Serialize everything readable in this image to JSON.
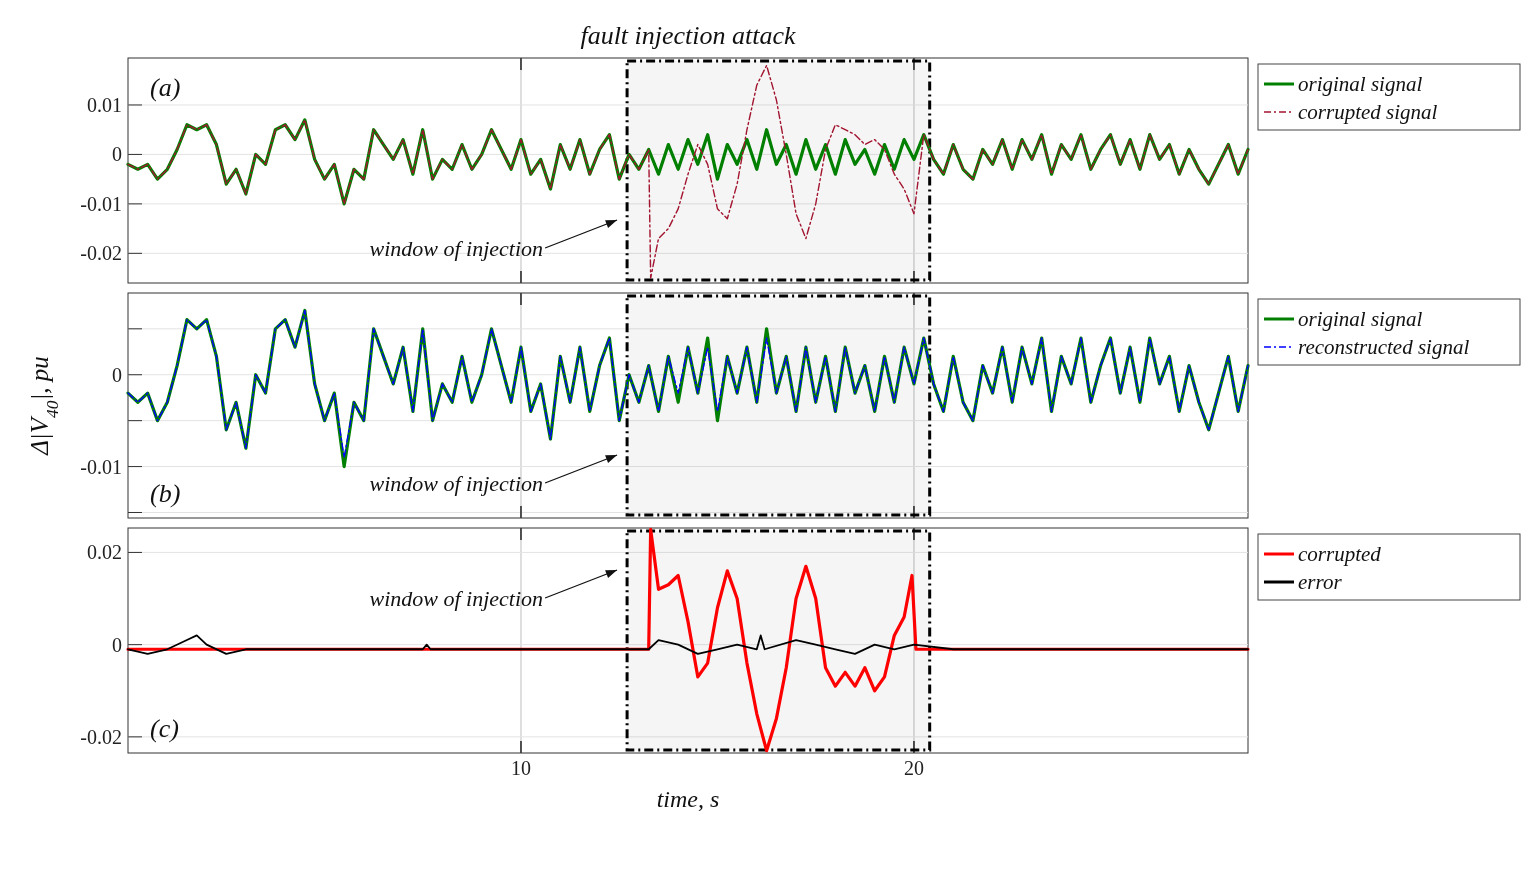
{
  "chart_data": [
    {
      "type": "line",
      "title": "fault injection attack",
      "xlim": [
        0,
        28.5
      ],
      "ylim": [
        -0.026,
        0.0195
      ],
      "yticks": [
        -0.02,
        -0.01,
        0,
        0.01
      ],
      "grid": true,
      "legend": "right",
      "tick_labels": "y",
      "x": [
        0,
        0.25,
        0.5,
        0.75,
        1,
        1.25,
        1.5,
        1.75,
        2,
        2.25,
        2.5,
        2.75,
        3,
        3.25,
        3.5,
        3.75,
        4,
        4.25,
        4.5,
        4.75,
        5,
        5.25,
        5.5,
        5.75,
        6,
        6.25,
        6.5,
        6.75,
        7,
        7.25,
        7.5,
        7.75,
        8,
        8.25,
        8.5,
        8.75,
        9,
        9.25,
        9.5,
        9.75,
        10,
        10.25,
        10.5,
        10.75,
        11,
        11.25,
        11.5,
        11.75,
        12,
        12.25,
        12.5,
        12.75,
        13,
        13.25,
        13.5,
        13.75,
        14,
        14.25,
        14.5,
        14.75,
        15,
        15.25,
        15.5,
        15.75,
        16,
        16.25,
        16.5,
        16.75,
        17,
        17.25,
        17.5,
        17.75,
        18,
        18.25,
        18.5,
        18.75,
        19,
        19.25,
        19.5,
        19.75,
        20,
        20.25,
        20.5,
        20.75,
        21,
        21.25,
        21.5,
        21.75,
        22,
        22.25,
        22.5,
        22.75,
        23,
        23.25,
        23.5,
        23.75,
        24,
        24.25,
        24.5,
        24.75,
        25,
        25.25,
        25.5,
        25.75,
        26,
        26.25,
        26.5,
        26.75,
        27,
        27.25,
        27.5,
        27.75,
        28,
        28.25,
        28.5
      ],
      "series": [
        {
          "name": "original signal",
          "color": "#007f00",
          "line_style": "solid",
          "values": [
            -0.002,
            -0.003,
            -0.002,
            -0.005,
            -0.003,
            0.001,
            0.006,
            0.005,
            0.006,
            0.002,
            -0.006,
            -0.003,
            -0.008,
            0,
            -0.002,
            0.005,
            0.006,
            0.003,
            0.007,
            -0.001,
            -0.005,
            -0.002,
            -0.01,
            -0.003,
            -0.005,
            0.005,
            0.002,
            -0.001,
            0.003,
            -0.004,
            0.005,
            -0.005,
            -0.001,
            -0.003,
            0.002,
            -0.003,
            0,
            0.005,
            0.001,
            -0.003,
            0.003,
            -0.004,
            -0.001,
            -0.007,
            0.002,
            -0.003,
            0.003,
            -0.004,
            0.001,
            0.004,
            -0.005,
            0,
            -0.003,
            0.001,
            -0.004,
            0.002,
            -0.003,
            0.003,
            -0.002,
            0.004,
            -0.005,
            0.002,
            -0.002,
            0.003,
            -0.003,
            0.005,
            -0.002,
            0.002,
            -0.004,
            0.003,
            -0.003,
            0.002,
            -0.004,
            0.003,
            -0.002,
            0.001,
            -0.004,
            0.002,
            -0.003,
            0.003,
            -0.001,
            0.004,
            -0.001,
            -0.004,
            0.002,
            -0.003,
            -0.005,
            0.001,
            -0.002,
            0.003,
            -0.003,
            0.003,
            -0.001,
            0.004,
            -0.004,
            0.002,
            -0.001,
            0.004,
            -0.003,
            0.001,
            0.004,
            -0.002,
            0.003,
            -0.003,
            0.004,
            -0.001,
            0.002,
            -0.004,
            0.001,
            -0.003,
            -0.006,
            -0.002,
            0.002,
            -0.004,
            0.001
          ]
        },
        {
          "name": "corrupted signal",
          "color": "#a2142f",
          "line_style": "dashed",
          "x": [
            0,
            0.25,
            0.5,
            0.75,
            1,
            1.25,
            1.5,
            1.75,
            2,
            2.25,
            2.5,
            2.75,
            3,
            3.25,
            3.5,
            3.75,
            4,
            4.25,
            4.5,
            4.75,
            5,
            5.25,
            5.5,
            5.75,
            6,
            6.25,
            6.5,
            6.75,
            7,
            7.25,
            7.5,
            7.75,
            8,
            8.25,
            8.5,
            8.75,
            9,
            9.25,
            9.5,
            9.75,
            10,
            10.25,
            10.5,
            10.75,
            11,
            11.25,
            11.5,
            11.75,
            12,
            12.25,
            12.5,
            12.75,
            13,
            13.25,
            13.3,
            13.5,
            13.75,
            14,
            14.25,
            14.5,
            14.75,
            15,
            15.25,
            15.5,
            15.75,
            16,
            16.25,
            16.5,
            16.75,
            17,
            17.25,
            17.5,
            17.75,
            18,
            18.25,
            18.5,
            18.75,
            19,
            19.25,
            19.5,
            19.75,
            20,
            20.25,
            20.5,
            20.75,
            21,
            21.25,
            21.5,
            21.75,
            22,
            22.25,
            22.5,
            22.75,
            23,
            23.25,
            23.5,
            23.75,
            24,
            24.25,
            24.5,
            24.75,
            25,
            25.25,
            25.5,
            25.75,
            26,
            26.25,
            26.5,
            26.75,
            27,
            27.25,
            27.5,
            27.75,
            28,
            28.25,
            28.5
          ],
          "values": [
            -0.002,
            -0.003,
            -0.002,
            -0.005,
            -0.003,
            0.001,
            0.006,
            0.005,
            0.006,
            0.002,
            -0.006,
            -0.003,
            -0.008,
            0,
            -0.002,
            0.005,
            0.006,
            0.003,
            0.007,
            -0.001,
            -0.005,
            -0.002,
            -0.01,
            -0.003,
            -0.005,
            0.005,
            0.002,
            -0.001,
            0.003,
            -0.004,
            0.005,
            -0.005,
            -0.001,
            -0.003,
            0.002,
            -0.003,
            0,
            0.005,
            0.001,
            -0.003,
            0.003,
            -0.004,
            -0.001,
            -0.007,
            0.002,
            -0.003,
            0.003,
            -0.004,
            0.001,
            0.004,
            -0.005,
            0,
            -0.003,
            0.001,
            -0.025,
            -0.017,
            -0.015,
            -0.011,
            -0.004,
            0.002,
            -0.002,
            -0.011,
            -0.013,
            -0.006,
            0.005,
            0.014,
            0.018,
            0.011,
            0,
            -0.012,
            -0.017,
            -0.01,
            0.001,
            0.006,
            0.005,
            0.004,
            0.002,
            0.003,
            0.001,
            -0.004,
            -0.007,
            -0.012,
            0.004,
            -0.001,
            -0.004,
            0.002,
            -0.003,
            -0.005,
            0.001,
            -0.002,
            0.003,
            -0.003,
            0.003,
            -0.001,
            0.004,
            -0.004,
            0.002,
            -0.001,
            0.004,
            -0.003,
            0.001,
            0.004,
            -0.002,
            0.003,
            -0.003,
            0.004,
            -0.001,
            0.002,
            -0.004,
            0.001,
            -0.003,
            -0.006,
            -0.002,
            0.002,
            -0.004,
            0.001
          ]
        }
      ],
      "bands": [
        {
          "axis": "x",
          "from": 12.7,
          "to": 20.4,
          "color": "#000000"
        }
      ],
      "annotations": [
        "(a)",
        "window of injection"
      ]
    },
    {
      "type": "line",
      "ylabel": "Δ|V$_{40}$|, pu",
      "xlim": [
        0,
        28.5
      ],
      "ylim": [
        -0.0156,
        0.0089
      ],
      "yticks": [
        {
          "value": -0.015,
          "label": null
        },
        -0.01,
        {
          "value": -0.005,
          "label": null
        },
        0,
        {
          "value": 0.005,
          "label": null
        }
      ],
      "grid": true,
      "legend": "right",
      "tick_labels": "y",
      "x": [
        0,
        0.25,
        0.5,
        0.75,
        1,
        1.25,
        1.5,
        1.75,
        2,
        2.25,
        2.5,
        2.75,
        3,
        3.25,
        3.5,
        3.75,
        4,
        4.25,
        4.5,
        4.75,
        5,
        5.25,
        5.5,
        5.75,
        6,
        6.25,
        6.5,
        6.75,
        7,
        7.25,
        7.5,
        7.75,
        8,
        8.25,
        8.5,
        8.75,
        9,
        9.25,
        9.5,
        9.75,
        10,
        10.25,
        10.5,
        10.75,
        11,
        11.25,
        11.5,
        11.75,
        12,
        12.25,
        12.5,
        12.75,
        13,
        13.25,
        13.5,
        13.75,
        14,
        14.25,
        14.5,
        14.75,
        15,
        15.25,
        15.5,
        15.75,
        16,
        16.25,
        16.5,
        16.75,
        17,
        17.25,
        17.5,
        17.75,
        18,
        18.25,
        18.5,
        18.75,
        19,
        19.25,
        19.5,
        19.75,
        20,
        20.25,
        20.5,
        20.75,
        21,
        21.25,
        21.5,
        21.75,
        22,
        22.25,
        22.5,
        22.75,
        23,
        23.25,
        23.5,
        23.75,
        24,
        24.25,
        24.5,
        24.75,
        25,
        25.25,
        25.5,
        25.75,
        26,
        26.25,
        26.5,
        26.75,
        27,
        27.25,
        27.5,
        27.75,
        28,
        28.25,
        28.5
      ],
      "series": [
        {
          "name": "original signal",
          "color": "#007f00",
          "line_style": "solid",
          "values": [
            -0.002,
            -0.003,
            -0.002,
            -0.005,
            -0.003,
            0.001,
            0.006,
            0.005,
            0.006,
            0.002,
            -0.006,
            -0.003,
            -0.008,
            0,
            -0.002,
            0.005,
            0.006,
            0.003,
            0.007,
            -0.001,
            -0.005,
            -0.002,
            -0.01,
            -0.003,
            -0.005,
            0.005,
            0.002,
            -0.001,
            0.003,
            -0.004,
            0.005,
            -0.005,
            -0.001,
            -0.003,
            0.002,
            -0.003,
            0,
            0.005,
            0.001,
            -0.003,
            0.003,
            -0.004,
            -0.001,
            -0.007,
            0.002,
            -0.003,
            0.003,
            -0.004,
            0.001,
            0.004,
            -0.005,
            0,
            -0.003,
            0.001,
            -0.004,
            0.002,
            -0.003,
            0.003,
            -0.002,
            0.004,
            -0.005,
            0.002,
            -0.002,
            0.003,
            -0.003,
            0.005,
            -0.002,
            0.002,
            -0.004,
            0.003,
            -0.003,
            0.002,
            -0.004,
            0.003,
            -0.002,
            0.001,
            -0.004,
            0.002,
            -0.003,
            0.003,
            -0.001,
            0.004,
            -0.001,
            -0.004,
            0.002,
            -0.003,
            -0.005,
            0.001,
            -0.002,
            0.003,
            -0.003,
            0.003,
            -0.001,
            0.004,
            -0.004,
            0.002,
            -0.001,
            0.004,
            -0.003,
            0.001,
            0.004,
            -0.002,
            0.003,
            -0.003,
            0.004,
            -0.001,
            0.002,
            -0.004,
            0.001,
            -0.003,
            -0.006,
            -0.002,
            0.002,
            -0.004,
            0.001
          ]
        },
        {
          "name": "reconstructed signal",
          "color": "#0000ff",
          "line_style": "dashed",
          "values": [
            -0.002,
            -0.003,
            -0.002,
            -0.005,
            -0.003,
            0.001,
            0.006,
            0.005,
            0.006,
            0.002,
            -0.006,
            -0.003,
            -0.008,
            0,
            -0.002,
            0.005,
            0.006,
            0.003,
            0.007,
            -0.001,
            -0.005,
            -0.002,
            -0.009,
            -0.003,
            -0.005,
            0.005,
            0.002,
            -0.001,
            0.003,
            -0.004,
            0.005,
            -0.005,
            -0.001,
            -0.003,
            0.002,
            -0.003,
            0,
            0.005,
            0.001,
            -0.003,
            0.003,
            -0.004,
            -0.001,
            -0.007,
            0.002,
            -0.003,
            0.003,
            -0.004,
            0.001,
            0.004,
            -0.005,
            0,
            -0.003,
            0.001,
            -0.004,
            0.002,
            -0.002,
            0.003,
            -0.002,
            0.003,
            -0.004,
            0.002,
            -0.002,
            0.003,
            -0.003,
            0.004,
            -0.002,
            0.002,
            -0.004,
            0.003,
            -0.003,
            0.002,
            -0.004,
            0.003,
            -0.002,
            0.001,
            -0.004,
            0.002,
            -0.003,
            0.003,
            -0.001,
            0.004,
            -0.001,
            -0.004,
            0.002,
            -0.003,
            -0.005,
            0.001,
            -0.002,
            0.003,
            -0.003,
            0.003,
            -0.001,
            0.004,
            -0.004,
            0.002,
            -0.001,
            0.004,
            -0.003,
            0.001,
            0.004,
            -0.002,
            0.003,
            -0.003,
            0.004,
            -0.001,
            0.002,
            -0.004,
            0.001,
            -0.003,
            -0.006,
            -0.002,
            0.002,
            -0.004,
            0.001
          ]
        }
      ],
      "bands": [
        {
          "axis": "x",
          "from": 12.7,
          "to": 20.4,
          "color": "#000000"
        }
      ],
      "annotations": [
        "(b)",
        "window of injection"
      ]
    },
    {
      "type": "line",
      "xlabel": "time, s",
      "xlim": [
        0,
        28.5
      ],
      "xticks": [
        10,
        20
      ],
      "ylim": [
        -0.0235,
        0.0253
      ],
      "yticks": [
        -0.02,
        0,
        0.02
      ],
      "grid": true,
      "legend": "right",
      "series": [
        {
          "name": "corrupted",
          "color": "#ff0000",
          "line_style": "solid",
          "x": [
            0,
            13.25,
            13.3,
            13.5,
            13.75,
            14,
            14.25,
            14.5,
            14.75,
            15,
            15.25,
            15.5,
            15.75,
            16,
            16.25,
            16.5,
            16.75,
            17,
            17.25,
            17.5,
            17.75,
            18,
            18.25,
            18.5,
            18.75,
            19,
            19.25,
            19.5,
            19.75,
            19.95,
            20.05,
            28.5
          ],
          "values": [
            -0.001,
            -0.001,
            0.025,
            0.012,
            0.013,
            0.015,
            0.005,
            -0.007,
            -0.004,
            0.008,
            0.016,
            0.01,
            -0.004,
            -0.015,
            -0.023,
            -0.016,
            -0.005,
            0.01,
            0.017,
            0.01,
            -0.005,
            -0.009,
            -0.006,
            -0.009,
            -0.005,
            -0.01,
            -0.007,
            0.002,
            0.006,
            0.015,
            -0.001,
            -0.001
          ]
        },
        {
          "name": "error",
          "color": "#000000",
          "line_style": "solid",
          "x": [
            0,
            0.5,
            1,
            1.5,
            1.75,
            2,
            2.5,
            3,
            5,
            7.5,
            7.6,
            7.7,
            10,
            13.25,
            13.5,
            14,
            14.5,
            15,
            15.5,
            16,
            16.1,
            16.2,
            17,
            17.5,
            18,
            18.5,
            19,
            19.5,
            20,
            21,
            24,
            26,
            28.5
          ],
          "values": [
            -0.001,
            -0.002,
            -0.001,
            0.001,
            0.002,
            0,
            -0.002,
            -0.001,
            -0.001,
            -0.001,
            0,
            -0.001,
            -0.001,
            -0.001,
            0.001,
            0,
            -0.002,
            -0.001,
            0,
            -0.001,
            0.002,
            -0.001,
            0.001,
            0,
            -0.001,
            -0.002,
            0,
            -0.001,
            0,
            -0.001,
            -0.001,
            -0.001,
            -0.001
          ]
        }
      ],
      "bands": [
        {
          "axis": "x",
          "from": 12.7,
          "to": 20.4,
          "color": "#000000"
        }
      ],
      "annotations": [
        "(c)",
        "window of injection"
      ]
    }
  ]
}
